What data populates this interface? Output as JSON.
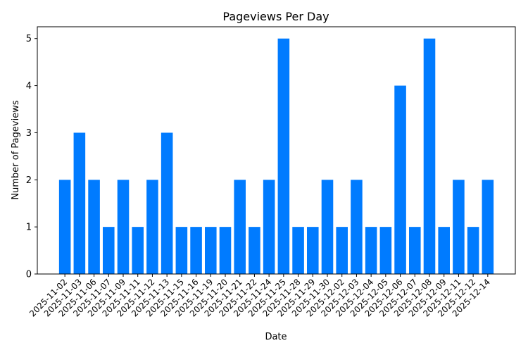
{
  "chart_data": {
    "type": "bar",
    "title": "Pageviews Per Day",
    "xlabel": "Date",
    "ylabel": "Number of Pageviews",
    "categories": [
      "2025-11-02",
      "2025-11-03",
      "2025-11-06",
      "2025-11-07",
      "2025-11-09",
      "2025-11-11",
      "2025-11-12",
      "2025-11-13",
      "2025-11-15",
      "2025-11-16",
      "2025-11-19",
      "2025-11-20",
      "2025-11-21",
      "2025-11-22",
      "2025-11-24",
      "2025-11-25",
      "2025-11-28",
      "2025-11-29",
      "2025-11-30",
      "2025-12-02",
      "2025-12-03",
      "2025-12-04",
      "2025-12-05",
      "2025-12-06",
      "2025-12-07",
      "2025-12-08",
      "2025-12-09",
      "2025-12-11",
      "2025-12-12",
      "2025-12-14"
    ],
    "values": [
      2,
      3,
      2,
      1,
      2,
      1,
      2,
      3,
      1,
      1,
      1,
      1,
      2,
      1,
      2,
      5,
      1,
      1,
      2,
      1,
      2,
      1,
      1,
      4,
      1,
      5,
      1,
      2,
      1,
      2
    ],
    "ylim": [
      0,
      5.25
    ],
    "yticks": [
      0,
      1,
      2,
      3,
      4,
      5
    ],
    "grid": false,
    "bar_color": "#007bff"
  }
}
